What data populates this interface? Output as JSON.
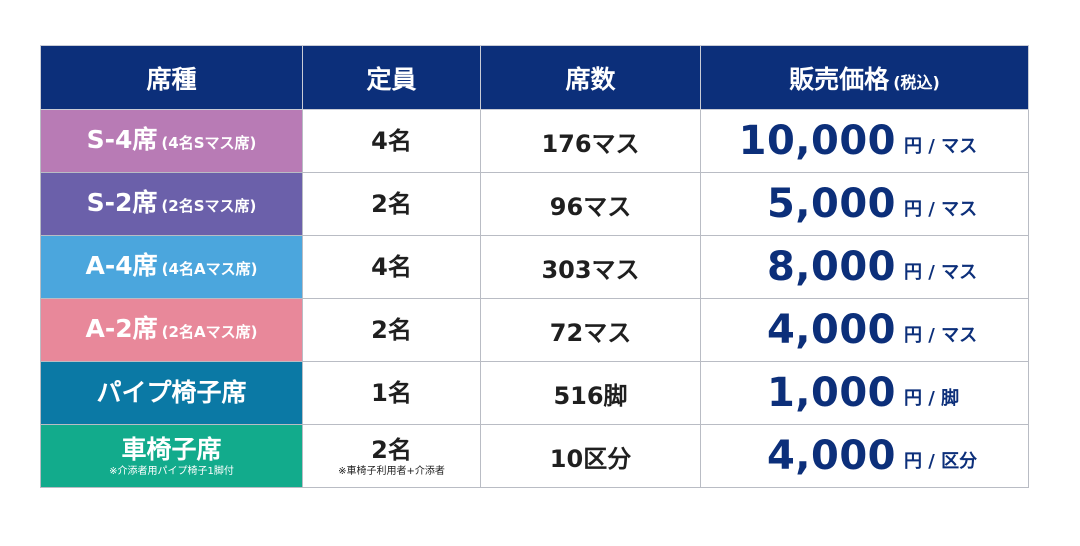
{
  "header": {
    "seat_type": "席種",
    "capacity": "定員",
    "seat_count": "席数",
    "price": "販売価格",
    "price_note": "(税込)"
  },
  "rows": [
    {
      "seat_name": "S-4席",
      "seat_sub": "(4名Sマス席)",
      "seat_note": "",
      "capacity": "4名",
      "capacity_note": "",
      "count": "176マス",
      "amount": "10,000",
      "unit": "円 / マス",
      "color": "#b87bb5"
    },
    {
      "seat_name": "S-2席",
      "seat_sub": "(2名Sマス席)",
      "seat_note": "",
      "capacity": "2名",
      "capacity_note": "",
      "count": "96マス",
      "amount": "5,000",
      "unit": "円 / マス",
      "color": "#6b60aa"
    },
    {
      "seat_name": "A-4席",
      "seat_sub": "(4名Aマス席)",
      "seat_note": "",
      "capacity": "4名",
      "capacity_note": "",
      "count": "303マス",
      "amount": "8,000",
      "unit": "円 / マス",
      "color": "#4ba6dd"
    },
    {
      "seat_name": "A-2席",
      "seat_sub": "(2名Aマス席)",
      "seat_note": "",
      "capacity": "2名",
      "capacity_note": "",
      "count": "72マス",
      "amount": "4,000",
      "unit": "円 / マス",
      "color": "#e8889a"
    },
    {
      "seat_name": "パイプ椅子席",
      "seat_sub": "",
      "seat_note": "",
      "capacity": "1名",
      "capacity_note": "",
      "count": "516脚",
      "amount": "1,000",
      "unit": "円 / 脚",
      "color": "#0b79a5"
    },
    {
      "seat_name": "車椅子席",
      "seat_sub": "",
      "seat_note": "※介添者用パイプ椅子1脚付",
      "capacity": "2名",
      "capacity_note": "※車椅子利用者+介添者",
      "count": "10区分",
      "amount": "4,000",
      "unit": "円 / 区分",
      "color": "#12ab8c"
    }
  ],
  "colors": {
    "header_bg": "#0c2f7a",
    "price_text": "#0c2f7a",
    "body_text": "#1f1f1f",
    "border": "#b9bcc4"
  }
}
